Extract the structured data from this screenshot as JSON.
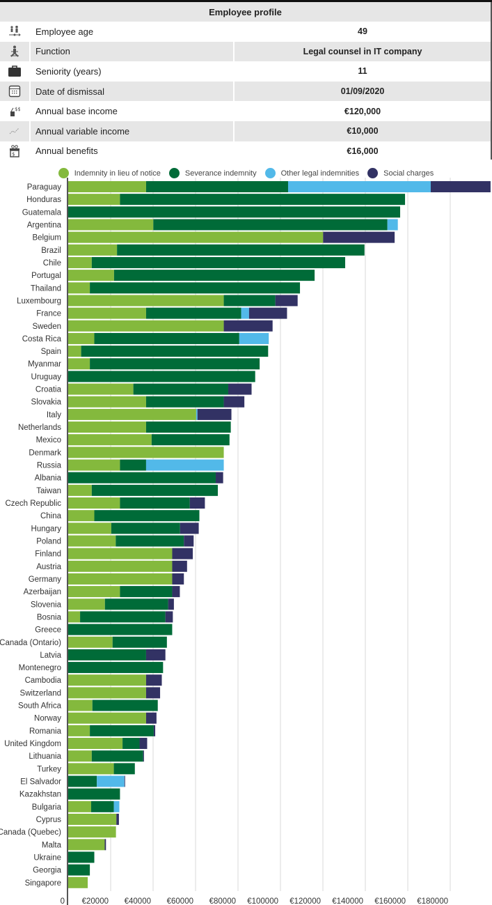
{
  "profile": {
    "title": "Employee profile",
    "rows": [
      {
        "icon": "age-icon",
        "label": "Employee age",
        "value": "49"
      },
      {
        "icon": "function-icon",
        "label": "Function",
        "value": "Legal counsel in IT company"
      },
      {
        "icon": "briefcase-icon",
        "label": "Seniority (years)",
        "value": "11"
      },
      {
        "icon": "calendar-icon",
        "label": "Date of dismissal",
        "value": "01/09/2020"
      },
      {
        "icon": "money-bag-icon",
        "label": "Annual base income",
        "value": "€120,000"
      },
      {
        "icon": "trend-icon",
        "label": "Annual variable income",
        "value": "€10,000"
      },
      {
        "icon": "gift-icon",
        "label": "Annual benefits",
        "value": "€16,000"
      }
    ]
  },
  "chart_data": {
    "type": "bar",
    "orientation": "horizontal",
    "stacked": true,
    "title": "",
    "xlabel": "",
    "ylabel": "",
    "xlim": [
      0,
      200000
    ],
    "x_ticks": [
      "0",
      "€20000",
      "€40000",
      "€60000",
      "€80000",
      "€100000",
      "€120000",
      "€140000",
      "€160000",
      "€180000"
    ],
    "x_tick_values": [
      0,
      20000,
      40000,
      60000,
      80000,
      100000,
      120000,
      140000,
      160000,
      180000
    ],
    "grid": true,
    "legend_position": "top",
    "categories": [
      "Paraguay",
      "Honduras",
      "Guatemala",
      "Argentina",
      "Belgium",
      "Brazil",
      "Chile",
      "Portugal",
      "Thailand",
      "Luxembourg",
      "France",
      "Sweden",
      "Costa Rica",
      "Spain",
      "Myanmar",
      "Uruguay",
      "Croatia",
      "Slovakia",
      "Italy",
      "Netherlands",
      "Mexico",
      "Denmark",
      "Russia",
      "Albania",
      "Taiwan",
      "Czech Republic",
      "China",
      "Hungary",
      "Poland",
      "Finland",
      "Austria",
      "Germany",
      "Azerbaijan",
      "Slovenia",
      "Bosnia",
      "Greece",
      "Canada (Ontario)",
      "Latvia",
      "Montenegro",
      "Cambodia",
      "Switzerland",
      "South Africa",
      "Norway",
      "Romania",
      "United Kingdom",
      "Lithuania",
      "Turkey",
      "El Salvador",
      "Kazakhstan",
      "Bulgaria",
      "Cyprus",
      "Canada (Quebec)",
      "Malta",
      "Ukraine",
      "Georgia",
      "Singapore"
    ],
    "series": [
      {
        "name": "Indemnity in lieu of notice",
        "color": "#84b93d",
        "values": [
          36700,
          24400,
          0,
          40100,
          120100,
          23000,
          11100,
          21600,
          10200,
          73300,
          36700,
          73300,
          12300,
          6100,
          10200,
          0,
          30700,
          36700,
          60300,
          36700,
          39300,
          73300,
          24400,
          0,
          11100,
          24400,
          12300,
          20300,
          22400,
          49000,
          49000,
          49000,
          24400,
          17300,
          5600,
          0,
          20900,
          0,
          0,
          36700,
          36700,
          11400,
          36700,
          10200,
          25600,
          11100,
          21500,
          0,
          0,
          10800,
          22700,
          22500,
          17200,
          0,
          0,
          9200
        ]
      },
      {
        "name": "Severance indemnity",
        "color": "#006b38",
        "values": [
          66900,
          134300,
          156400,
          110300,
          0,
          116600,
          119400,
          94500,
          99000,
          24300,
          44800,
          0,
          68300,
          88100,
          80000,
          88100,
          44700,
          36600,
          0,
          39900,
          36700,
          0,
          12300,
          69500,
          59400,
          32900,
          49500,
          32400,
          32100,
          0,
          0,
          0,
          24600,
          29800,
          40200,
          49000,
          25600,
          36700,
          44700,
          0,
          0,
          30800,
          0,
          30100,
          8000,
          24200,
          9900,
          13500,
          24400,
          10700,
          0,
          0,
          0,
          12300,
          10200,
          0
        ]
      },
      {
        "name": "Other legal indemnities",
        "color": "#52b9e9",
        "values": [
          67200,
          0,
          0,
          4900,
          0,
          0,
          0,
          0,
          0,
          0,
          3700,
          0,
          13900,
          0,
          0,
          0,
          0,
          0,
          600,
          0,
          0,
          0,
          36600,
          0,
          0,
          0,
          0,
          0,
          0,
          0,
          0,
          0,
          0,
          0,
          0,
          0,
          0,
          0,
          0,
          0,
          0,
          0,
          0,
          0,
          0,
          0,
          0,
          13000,
          0,
          2600,
          0,
          0,
          0,
          0,
          0,
          0
        ]
      },
      {
        "name": "Social charges",
        "color": "#323264",
        "values": [
          28200,
          0,
          0,
          0,
          33700,
          0,
          0,
          0,
          0,
          10500,
          17900,
          23000,
          0,
          0,
          0,
          0,
          11000,
          9700,
          16000,
          0,
          0,
          0,
          0,
          3500,
          0,
          7100,
          0,
          8800,
          4600,
          9700,
          7000,
          5500,
          3600,
          2700,
          3500,
          0,
          0,
          9100,
          0,
          7400,
          6600,
          0,
          4900,
          700,
          3600,
          400,
          0,
          300,
          0,
          0,
          1200,
          0,
          600,
          0,
          0,
          0
        ]
      }
    ]
  }
}
